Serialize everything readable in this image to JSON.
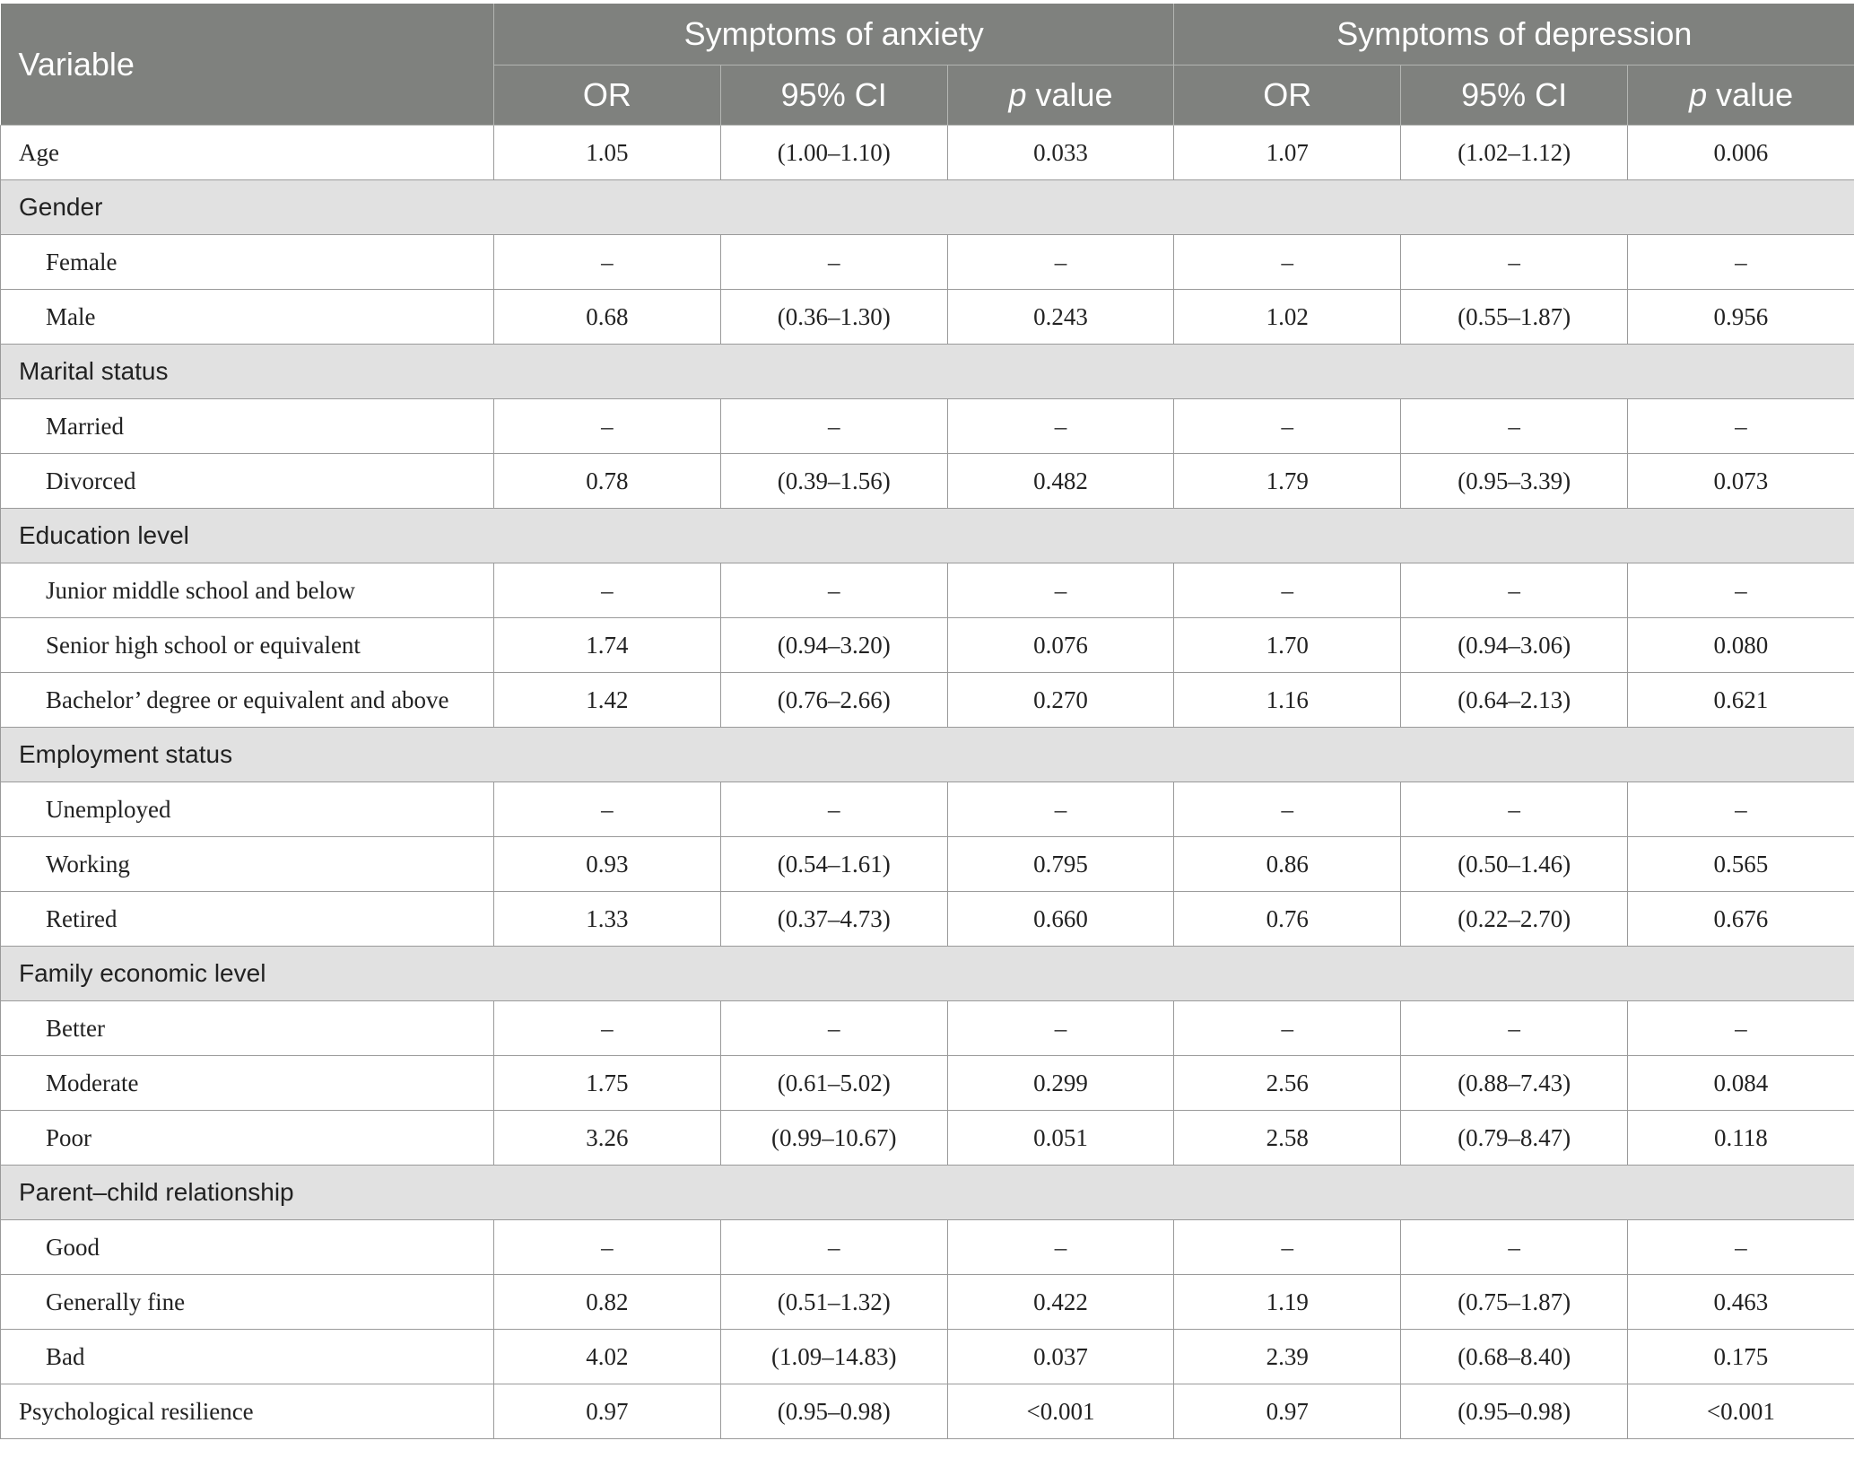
{
  "header": {
    "variable": "Variable",
    "group_anxiety": "Symptoms of anxiety",
    "group_depression": "Symptoms of depression",
    "or": "OR",
    "ci": "95% CI",
    "p_italic": "p",
    "p_rest": " value"
  },
  "rows": [
    {
      "type": "row",
      "label": "Age",
      "values": [
        "1.05",
        "(1.00–1.10)",
        "0.033",
        "1.07",
        "(1.02–1.12)",
        "0.006"
      ]
    },
    {
      "type": "group",
      "label": "Gender"
    },
    {
      "type": "row",
      "indent": true,
      "label": "Female",
      "values": [
        "–",
        "–",
        "–",
        "–",
        "–",
        "–"
      ]
    },
    {
      "type": "row",
      "indent": true,
      "label": "Male",
      "values": [
        "0.68",
        "(0.36–1.30)",
        "0.243",
        "1.02",
        "(0.55–1.87)",
        "0.956"
      ]
    },
    {
      "type": "group",
      "label": "Marital status"
    },
    {
      "type": "row",
      "indent": true,
      "label": "Married",
      "values": [
        "–",
        "–",
        "–",
        "–",
        "–",
        "–"
      ]
    },
    {
      "type": "row",
      "indent": true,
      "label": "Divorced",
      "values": [
        "0.78",
        "(0.39–1.56)",
        "0.482",
        "1.79",
        "(0.95–3.39)",
        "0.073"
      ]
    },
    {
      "type": "group",
      "label": "Education level"
    },
    {
      "type": "row",
      "indent": true,
      "label": "Junior middle school and below",
      "values": [
        "–",
        "–",
        "–",
        "–",
        "–",
        "–"
      ]
    },
    {
      "type": "row",
      "indent": true,
      "label": "Senior high school or equivalent",
      "values": [
        "1.74",
        "(0.94–3.20)",
        "0.076",
        "1.70",
        "(0.94–3.06)",
        "0.080"
      ]
    },
    {
      "type": "row",
      "indent": true,
      "label": "Bachelor’ degree or equivalent and above",
      "values": [
        "1.42",
        "(0.76–2.66)",
        "0.270",
        "1.16",
        "(0.64–2.13)",
        "0.621"
      ]
    },
    {
      "type": "group",
      "label": "Employment status"
    },
    {
      "type": "row",
      "indent": true,
      "label": "Unemployed",
      "values": [
        "–",
        "–",
        "–",
        "–",
        "–",
        "–"
      ]
    },
    {
      "type": "row",
      "indent": true,
      "label": "Working",
      "values": [
        "0.93",
        "(0.54–1.61)",
        "0.795",
        "0.86",
        "(0.50–1.46)",
        "0.565"
      ]
    },
    {
      "type": "row",
      "indent": true,
      "label": "Retired",
      "values": [
        "1.33",
        "(0.37–4.73)",
        "0.660",
        "0.76",
        "(0.22–2.70)",
        "0.676"
      ]
    },
    {
      "type": "group",
      "label": "Family economic level"
    },
    {
      "type": "row",
      "indent": true,
      "label": "Better",
      "values": [
        "–",
        "–",
        "–",
        "–",
        "–",
        "–"
      ]
    },
    {
      "type": "row",
      "indent": true,
      "label": "Moderate",
      "values": [
        "1.75",
        "(0.61–5.02)",
        "0.299",
        "2.56",
        "(0.88–7.43)",
        "0.084"
      ]
    },
    {
      "type": "row",
      "indent": true,
      "label": "Poor",
      "values": [
        "3.26",
        "(0.99–10.67)",
        "0.051",
        "2.58",
        "(0.79–8.47)",
        "0.118"
      ]
    },
    {
      "type": "group",
      "label": "Parent–child relationship"
    },
    {
      "type": "row",
      "indent": true,
      "label": "Good",
      "values": [
        "–",
        "–",
        "–",
        "–",
        "–",
        "–"
      ]
    },
    {
      "type": "row",
      "indent": true,
      "label": "Generally fine",
      "values": [
        "0.82",
        "(0.51–1.32)",
        "0.422",
        "1.19",
        "(0.75–1.87)",
        "0.463"
      ]
    },
    {
      "type": "row",
      "indent": true,
      "label": "Bad",
      "values": [
        "4.02",
        "(1.09–14.83)",
        "0.037",
        "2.39",
        "(0.68–8.40)",
        "0.175"
      ]
    },
    {
      "type": "row",
      "label": "Psychological resilience",
      "values": [
        "0.97",
        "(0.95–0.98)",
        "<0.001",
        "0.97",
        "(0.95–0.98)",
        "<0.001"
      ]
    }
  ]
}
